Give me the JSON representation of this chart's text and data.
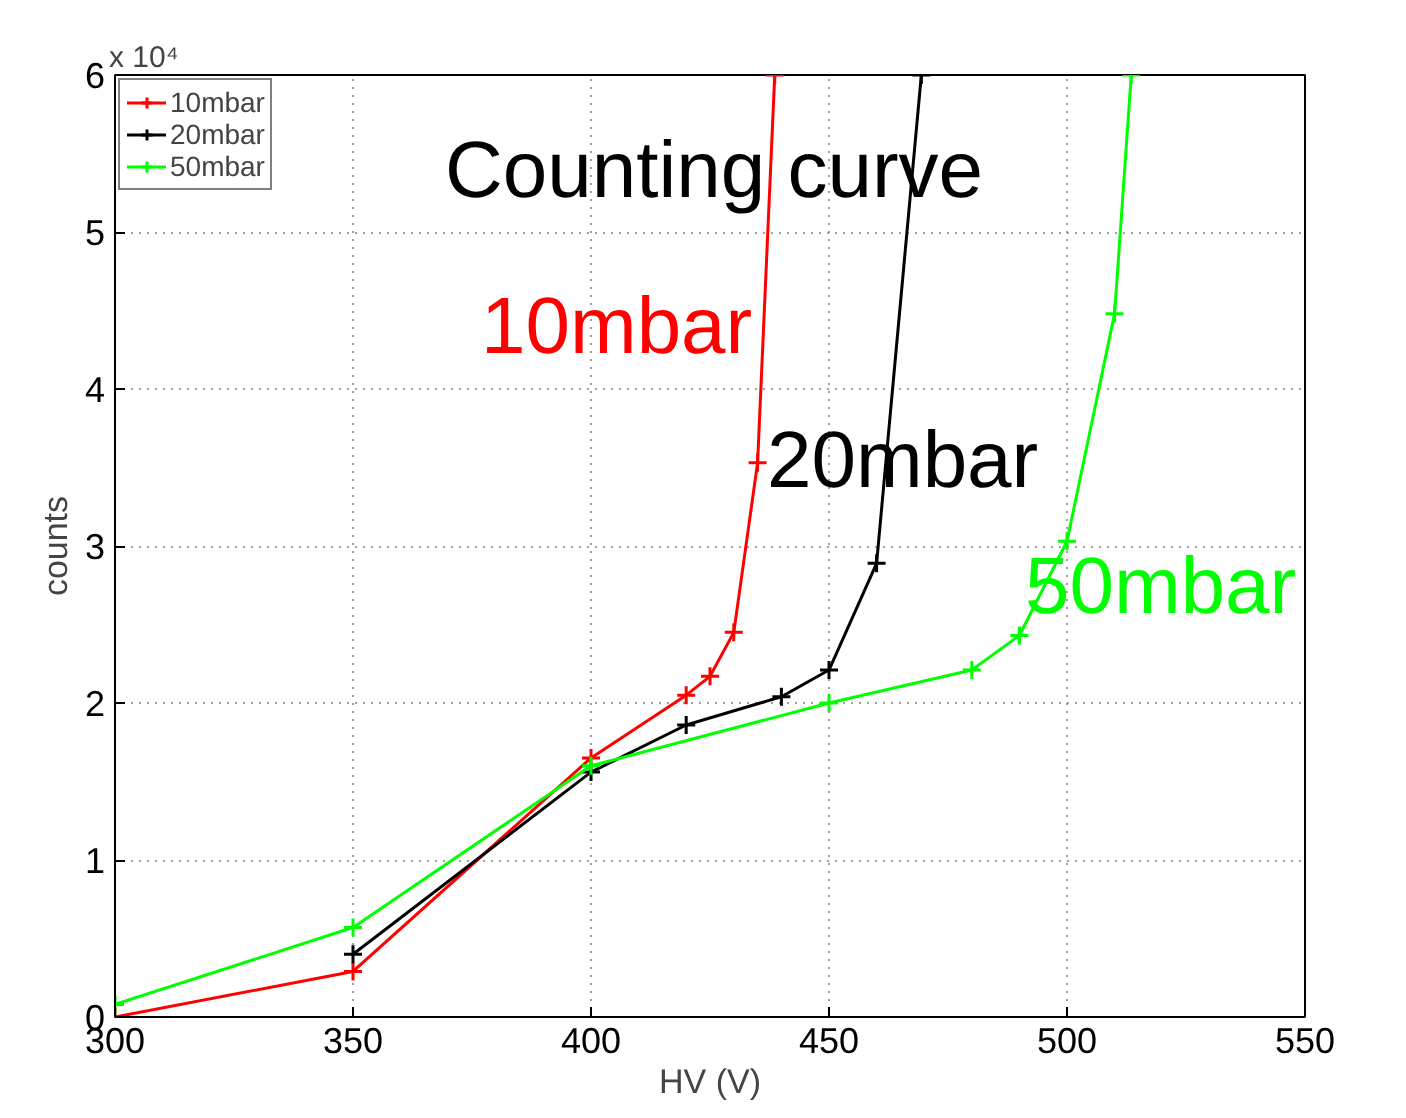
{
  "chart_data": {
    "type": "line",
    "xlabel": "HV (V)",
    "ylabel": "counts",
    "xlim": [
      300,
      550
    ],
    "xticks": [
      300,
      350,
      400,
      450,
      500,
      550
    ],
    "ylim": [
      0,
      6
    ],
    "yticks": [
      0,
      1,
      2,
      3,
      4,
      5,
      6
    ],
    "grid": true,
    "legend": "top left",
    "marker": "cross",
    "line_style": "solid",
    "series": [
      {
        "name": "10mbar",
        "color": "#ff0000",
        "x": [
          300,
          350,
          400,
          420,
          425,
          430,
          435,
          438.6
        ],
        "values": [
          0,
          0.29,
          1.65,
          2.05,
          2.17,
          2.45,
          3.53,
          6
        ]
      },
      {
        "name": "20mbar",
        "color": "#000000",
        "x": [
          350,
          400,
          420,
          440,
          450,
          460,
          469.4
        ],
        "values": [
          0.4,
          1.56,
          1.86,
          2.04,
          2.21,
          2.89,
          6
        ]
      },
      {
        "name": "50mbar",
        "color": "#00ff00",
        "x": [
          300,
          350,
          400,
          450,
          480,
          490,
          500,
          510,
          513.5
        ],
        "values": [
          0.08,
          0.57,
          1.6,
          2.0,
          2.21,
          2.43,
          3.03,
          4.48,
          6
        ]
      }
    ],
    "annotations": [
      "x 10⁴",
      "Counting curve",
      "10mbar",
      "20mbar",
      "50mbar"
    ]
  }
}
